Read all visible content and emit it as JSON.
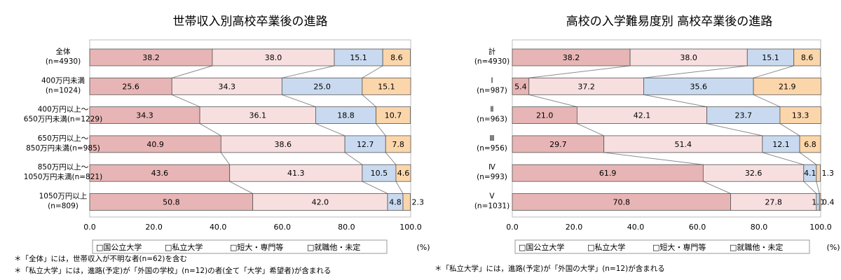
{
  "colors": {
    "national_public": "#e7b5b5",
    "private": "#f7dfe0",
    "junior_vocational": "#c9daf0",
    "employment_other": "#fcd6ab",
    "bar_stroke": "#555555",
    "connector": "#8c8c8c"
  },
  "legend": [
    "□国公立大学",
    "□私立大学",
    "□短大・専門等",
    "□就職他・未定"
  ],
  "unit_label": "(%)",
  "chart_data": [
    {
      "type": "bar",
      "orientation": "horizontal-stacked",
      "title": "世帯収入別高校卒業後の進路",
      "xlim": [
        0,
        100
      ],
      "ticks": [
        "0.0",
        "20.0",
        "40.0",
        "60.0",
        "80.0",
        "100.0"
      ],
      "categories": [
        [
          "全体",
          "(n=4930)"
        ],
        [
          "400万円未満",
          "(n=1024)"
        ],
        [
          "400万円以上～",
          "650万円未満(n=1229)"
        ],
        [
          "650万円以上～",
          "850万円未満(n=985)"
        ],
        [
          "850万円以上～",
          "1050万円未満(n=821)"
        ],
        [
          "1050万円以上",
          "(n=809)"
        ]
      ],
      "series": [
        {
          "name": "国公立大学",
          "values": [
            38.2,
            25.6,
            34.3,
            40.9,
            43.6,
            50.8
          ],
          "labels": [
            "38.2",
            "25.6",
            "34.3",
            "40.9",
            "43.6",
            "50.8"
          ]
        },
        {
          "name": "私立大学",
          "values": [
            38.0,
            34.3,
            36.1,
            38.6,
            41.3,
            42.0
          ],
          "labels": [
            "38.0",
            "34.3",
            "36.1",
            "38.6",
            "41.3",
            "42.0"
          ]
        },
        {
          "name": "短大・専門等",
          "values": [
            15.1,
            25.0,
            18.8,
            12.7,
            10.5,
            4.8
          ],
          "labels": [
            "15.1",
            "25.0",
            "18.8",
            "12.7",
            "10.5",
            "4.8"
          ]
        },
        {
          "name": "就職他・未定",
          "values": [
            8.6,
            15.1,
            10.7,
            7.8,
            4.6,
            2.3
          ],
          "labels": [
            "8.6",
            "15.1",
            "10.7",
            "7.8",
            "4.6",
            "2.3"
          ]
        }
      ],
      "notes": [
        "＊「全体」には，世帯収入が不明な者(n=62)を含む",
        "＊「私立大学」には，進路(予定)が「外国の学校」(n=12)の者(全て「大学」希望者)が含まれる"
      ]
    },
    {
      "type": "bar",
      "orientation": "horizontal-stacked",
      "title": "高校の入学難易度別 高校卒業後の進路",
      "xlim": [
        0,
        100
      ],
      "ticks": [
        "0.0",
        "20.0",
        "40.0",
        "60.0",
        "80.0",
        "100.0"
      ],
      "categories": [
        [
          "計",
          "(n=4930)"
        ],
        [
          "Ⅰ",
          "(n=987)"
        ],
        [
          "Ⅱ",
          "(n=963)"
        ],
        [
          "Ⅲ",
          "(n=956)"
        ],
        [
          "Ⅳ",
          "(n=993)"
        ],
        [
          "Ⅴ",
          "(n=1031)"
        ]
      ],
      "series": [
        {
          "name": "国公立大学",
          "values": [
            38.2,
            5.4,
            21.0,
            29.7,
            61.9,
            70.8
          ],
          "labels": [
            "38.2",
            "5.4",
            "21.0",
            "29.7",
            "61.9",
            "70.8"
          ]
        },
        {
          "name": "私立大学",
          "values": [
            38.0,
            37.2,
            42.1,
            51.4,
            32.6,
            27.8
          ],
          "labels": [
            "38.0",
            "37.2",
            "42.1",
            "51.4",
            "32.6",
            "27.8"
          ]
        },
        {
          "name": "短大・専門等",
          "values": [
            15.1,
            35.6,
            23.7,
            12.1,
            4.1,
            1.0
          ],
          "labels": [
            "15.1",
            "35.6",
            "23.7",
            "12.1",
            "4.1",
            "1.0"
          ]
        },
        {
          "name": "就職他・未定",
          "values": [
            8.6,
            21.9,
            13.3,
            6.8,
            1.3,
            0.4
          ],
          "labels": [
            "8.6",
            "21.9",
            "13.3",
            "6.8",
            "1.3",
            "0.4"
          ]
        }
      ],
      "notes": [
        "＊「私立大学」には，進路(予定)が「外国の大学」(n=12)が含まれる"
      ]
    }
  ]
}
